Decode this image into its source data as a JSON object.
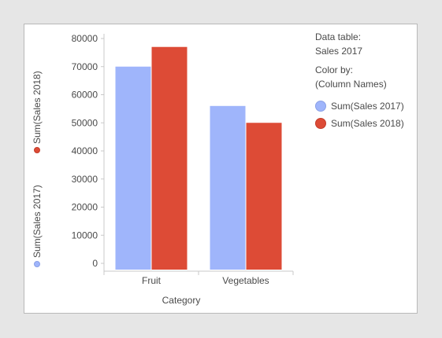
{
  "chart_data": {
    "type": "bar",
    "categories": [
      "Fruit",
      "Vegetables"
    ],
    "series": [
      {
        "name": "Sum(Sales 2017)",
        "color": "#9fb5fb",
        "values": [
          70000,
          56000
        ]
      },
      {
        "name": "Sum(Sales 2018)",
        "color": "#dd4b36",
        "values": [
          77000,
          50000
        ]
      }
    ],
    "xlabel": "Category",
    "ylim": [
      0,
      80000
    ],
    "yticks": [
      "0",
      "10000",
      "20000",
      "30000",
      "40000",
      "50000",
      "60000",
      "70000",
      "80000"
    ],
    "grid": false,
    "legend_position": "right"
  },
  "legend": {
    "data_table_label": "Data table:",
    "data_table_value": "Sales 2017",
    "color_by_label": "Color by:",
    "color_by_value": "(Column Names)"
  },
  "y_axis_selectors": [
    "Sum(Sales 2017)",
    "Sum(Sales 2018)"
  ]
}
